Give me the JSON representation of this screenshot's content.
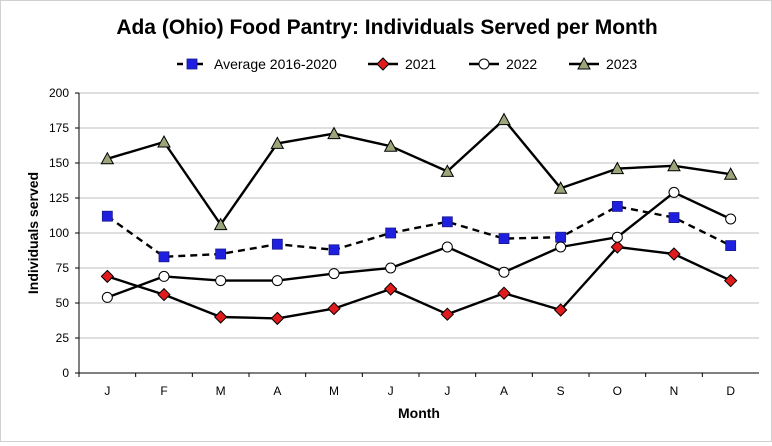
{
  "chart_data": {
    "type": "line",
    "title": "Ada (Ohio) Food Pantry: Individuals Served per Month",
    "xlabel": "Month",
    "ylabel": "Individuals  served",
    "categories": [
      "J",
      "F",
      "M",
      "A",
      "M",
      "J",
      "J",
      "A",
      "S",
      "O",
      "N",
      "D"
    ],
    "ylim": [
      0,
      200
    ],
    "yticks": [
      0,
      25,
      50,
      75,
      100,
      125,
      150,
      175,
      200
    ],
    "grid": "horizontal",
    "legend_position": "top",
    "series": [
      {
        "name": "Average 2016-2020",
        "values": [
          112,
          83,
          85,
          92,
          88,
          100,
          108,
          96,
          97,
          119,
          111,
          91
        ],
        "line_color": "#000000",
        "line_style": "dashed",
        "marker": "square",
        "marker_color": "#1f1fe0"
      },
      {
        "name": "2021",
        "values": [
          69,
          56,
          40,
          39,
          46,
          60,
          42,
          57,
          45,
          90,
          85,
          66
        ],
        "line_color": "#000000",
        "line_style": "solid",
        "marker": "diamond",
        "marker_color": "#e01b1b"
      },
      {
        "name": "2022",
        "values": [
          54,
          69,
          66,
          66,
          71,
          75,
          90,
          72,
          90,
          97,
          129,
          110
        ],
        "line_color": "#000000",
        "line_style": "solid",
        "marker": "circle",
        "marker_color": "#ffffff"
      },
      {
        "name": "2023",
        "values": [
          153,
          165,
          106,
          164,
          171,
          162,
          144,
          181,
          132,
          146,
          148,
          142
        ],
        "line_color": "#000000",
        "line_style": "solid",
        "marker": "triangle",
        "marker_color": "#9aa679"
      }
    ]
  }
}
